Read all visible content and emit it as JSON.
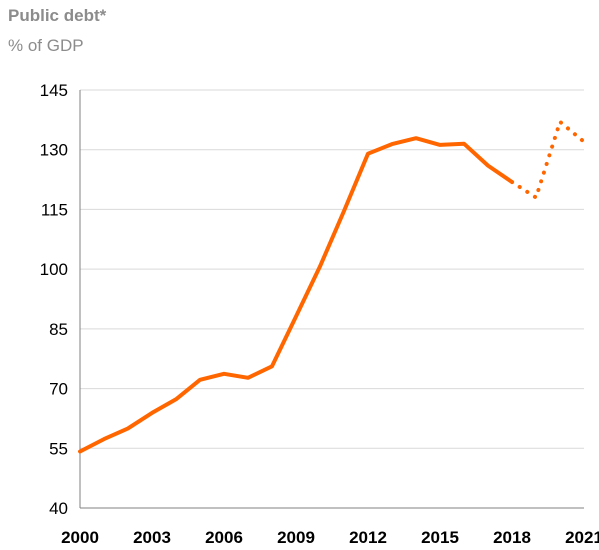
{
  "chart_data": {
    "type": "line",
    "title": "Public debt*",
    "subtitle": "% of GDP",
    "xlabel": "",
    "ylabel": "",
    "xlim": [
      2000,
      2021
    ],
    "ylim": [
      40,
      145
    ],
    "yticks": [
      40,
      55,
      70,
      85,
      100,
      115,
      130,
      145
    ],
    "xtick_labels": [
      "2000",
      "2003",
      "2006",
      "2009",
      "2012",
      "2015",
      "2018",
      "2021"
    ],
    "grid": true,
    "line_color": "#ff6600",
    "series": [
      {
        "style": "solid",
        "x": [
          2000,
          2001,
          2002,
          2003,
          2004,
          2005,
          2006,
          2007,
          2008,
          2009,
          2010,
          2011,
          2012,
          2013,
          2014,
          2015,
          2016,
          2017,
          2018
        ],
        "y": [
          54.2,
          57.3,
          60.0,
          63.9,
          67.3,
          72.2,
          73.7,
          72.7,
          75.6,
          88.1,
          100.7,
          114.6,
          129.0,
          131.4,
          132.9,
          131.2,
          131.5,
          126.0,
          121.9
        ]
      },
      {
        "style": "dotted",
        "x": [
          2018,
          2019,
          2020,
          2021
        ],
        "y": [
          121.9,
          118.0,
          137.0,
          132.0
        ]
      }
    ]
  }
}
